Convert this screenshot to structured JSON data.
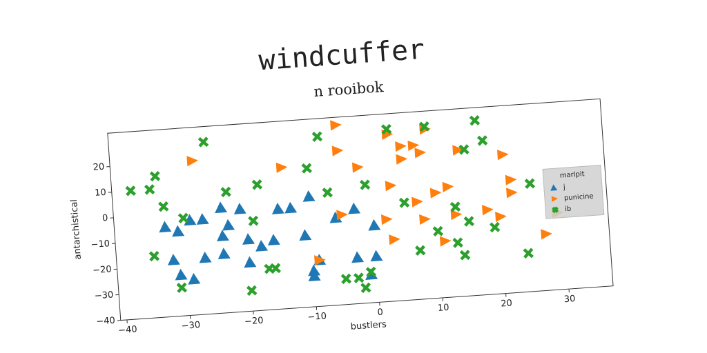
{
  "chart_data": {
    "type": "scatter",
    "title": "windcuffer",
    "subtitle": "n rooibok",
    "x_label": "bustlers",
    "y_label": "antarchistical",
    "xlim": [
      -41,
      37
    ],
    "ylim": [
      -40,
      33
    ],
    "xticks": [
      {
        "value": -40,
        "label": "−40"
      },
      {
        "value": -30,
        "label": "−30"
      },
      {
        "value": -20,
        "label": "−20"
      },
      {
        "value": -10,
        "label": "−10"
      },
      0,
      10,
      20,
      30
    ],
    "yticks": [
      {
        "value": -40,
        "label": "−40"
      },
      {
        "value": -30,
        "label": "−30"
      },
      {
        "value": -20,
        "label": "−20"
      },
      {
        "value": -10,
        "label": "−10"
      },
      0,
      10,
      20
    ],
    "legend_title": "marlpit",
    "legend_position": "right",
    "series": [
      {
        "name": "j",
        "color": "#1f77b4",
        "marker": "triangle-up",
        "x": [
          -33,
          -31,
          -29,
          -27,
          -24,
          -23,
          -24,
          -21,
          -20,
          -18,
          -16,
          -15,
          -13,
          -10,
          -11,
          -10,
          -9,
          -6,
          -3,
          0,
          -3,
          0,
          -1,
          -32,
          -31,
          -29,
          -27,
          -24,
          -20,
          -10
        ],
        "values": [
          -5,
          -7,
          -3,
          -3,
          1,
          -6,
          -10,
          0,
          -12,
          -15,
          -13,
          -1,
          -1,
          3,
          -12,
          -26,
          -22,
          -6,
          -3,
          -10,
          -22,
          -22,
          -29,
          -18,
          -24,
          -26,
          -18,
          -17,
          -21,
          -28
        ]
      },
      {
        "name": "punicine",
        "color": "#ff7f0e",
        "marker": "triangle-right",
        "x": [
          -5,
          -28,
          -14,
          -5,
          -2,
          3,
          5,
          5,
          7,
          8,
          14,
          21,
          9,
          3,
          2,
          -5,
          3,
          7,
          8,
          10,
          12,
          11,
          13,
          18,
          20,
          22,
          22,
          27,
          29,
          -9
        ],
        "values": [
          30,
          20,
          15,
          20,
          13,
          25,
          20,
          15,
          20,
          17,
          17,
          14,
          26,
          5,
          -8,
          -5,
          -16,
          -2,
          -9,
          1,
          3,
          -18,
          -8,
          -7,
          -10,
          4,
          -1,
          -18,
          -10,
          -22
        ]
      },
      {
        "name": "ib",
        "color": "#2ca02c",
        "marker": "x",
        "x": [
          -38,
          -35,
          -34,
          -33,
          -30,
          -26,
          -23,
          -18,
          -19,
          -17,
          -16,
          -20,
          -31,
          -35,
          -10,
          -8,
          -7,
          -1,
          3,
          9,
          17,
          15,
          18,
          25,
          5,
          10,
          7,
          13,
          13,
          14,
          15,
          19,
          24,
          -5,
          -3,
          -1,
          -2
        ],
        "values": [
          10,
          10,
          15,
          3,
          -2,
          27,
          7,
          9,
          -5,
          -24,
          -24,
          -32,
          -29,
          -16,
          14,
          26,
          4,
          6,
          27,
          27,
          28,
          17,
          20,
          2,
          -2,
          -14,
          -21,
          -5,
          -19,
          -24,
          -11,
          -14,
          -25,
          -30,
          -30,
          -28,
          -34
        ]
      }
    ]
  }
}
